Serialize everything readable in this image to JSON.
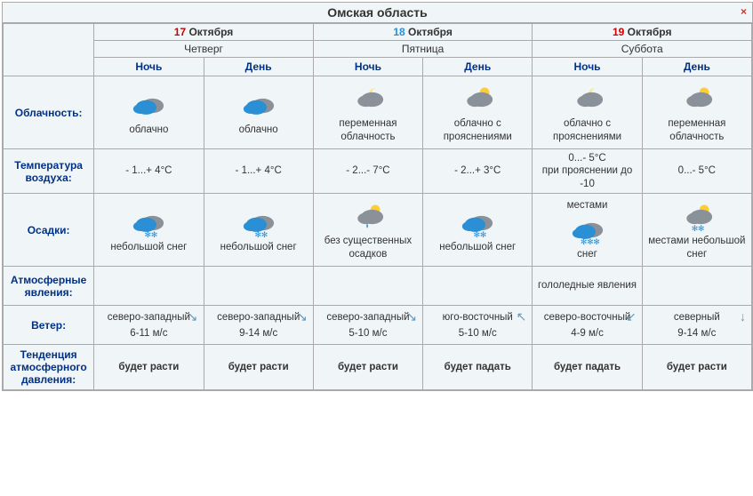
{
  "title": "Омская область",
  "close_glyph": "×",
  "colors": {
    "date1": "#cc0000",
    "date2": "#2a8fd4",
    "date3": "#cc0000",
    "month": "#333333"
  },
  "row_labels": {
    "cloud": "Облачность:",
    "temp": "Температура воздуха:",
    "precip": "Осадки:",
    "atm": "Атмосферные явления:",
    "wind": "Ветер:",
    "press": "Тенденция атмосферного давления:"
  },
  "nd": {
    "night": "Ночь",
    "day": "День"
  },
  "days": [
    {
      "num": "17",
      "month": "Октября",
      "dow": "Четверг"
    },
    {
      "num": "18",
      "month": "Октября",
      "dow": "Пятница"
    },
    {
      "num": "19",
      "month": "Октября",
      "dow": "Суббота"
    }
  ],
  "cols": [
    {
      "cloud": {
        "icon": "cloud-night",
        "text": "облачно"
      },
      "temp": "- 1...+ 4°C",
      "precip": {
        "icon": "light-snow-night",
        "text": "небольшой снег"
      },
      "atm": "",
      "wind": {
        "dir": "северо-западный",
        "speed": "6-11 м/с",
        "arrow": "↘"
      },
      "press": "будет расти"
    },
    {
      "cloud": {
        "icon": "cloud-day",
        "text": "облачно"
      },
      "temp": "- 1...+ 4°C",
      "precip": {
        "icon": "light-snow-day",
        "text": "небольшой снег"
      },
      "atm": "",
      "wind": {
        "dir": "северо-западный",
        "speed": "9-14 м/с",
        "arrow": "↘"
      },
      "press": "будет расти"
    },
    {
      "cloud": {
        "icon": "partly-night",
        "text": "переменная облачность"
      },
      "temp": "- 2...- 7°C",
      "precip": {
        "icon": "partly-rain",
        "text": "без существенных осадков"
      },
      "atm": "",
      "wind": {
        "dir": "северо-западный",
        "speed": "5-10 м/с",
        "arrow": "↘"
      },
      "press": "будет расти"
    },
    {
      "cloud": {
        "icon": "partly-day",
        "text": "облачно с прояснениями"
      },
      "temp": "- 2...+ 3°C",
      "precip": {
        "icon": "light-snow-day2",
        "text": "небольшой снег"
      },
      "atm": "",
      "wind": {
        "dir": "юго-восточный",
        "speed": "5-10 м/с",
        "arrow": "↖"
      },
      "press": "будет падать"
    },
    {
      "cloud": {
        "icon": "partly-night",
        "text": "облачно с прояснениями"
      },
      "temp": "0...- 5°C\nпри прояснении до -10",
      "precip": {
        "icon": "snow-night",
        "text": "местами\n\nснег"
      },
      "atm": "гололедные явления",
      "wind": {
        "dir": "северо-восточный",
        "speed": "4-9 м/с",
        "arrow": "↙"
      },
      "press": "будет падать"
    },
    {
      "cloud": {
        "icon": "partly-day",
        "text": "переменная облачность"
      },
      "temp": "0...- 5°C",
      "precip": {
        "icon": "snow-day",
        "text": "местами небольшой снег"
      },
      "atm": "",
      "wind": {
        "dir": "северный",
        "speed": "9-14 м/с",
        "arrow": "↓"
      },
      "press": "будет расти"
    }
  ]
}
